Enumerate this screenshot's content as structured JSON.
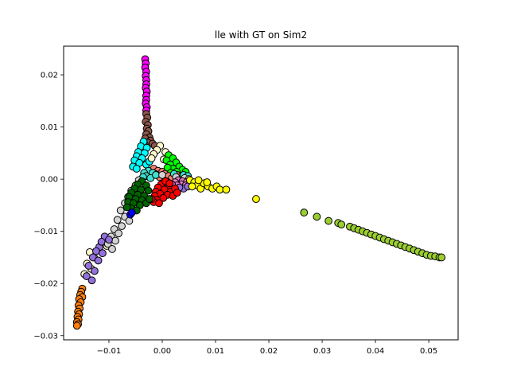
{
  "chart_data": {
    "type": "scatter",
    "title": "lle with GT on Sim2",
    "xlabel": "",
    "ylabel": "",
    "xlim": [
      -0.0185,
      0.0555
    ],
    "ylim": [
      -0.0308,
      0.0255
    ],
    "grid": false,
    "legend": "none",
    "xticks": [
      {
        "value": -0.01,
        "label": "−0.01"
      },
      {
        "value": 0.0,
        "label": "0.00"
      },
      {
        "value": 0.01,
        "label": "0.01"
      },
      {
        "value": 0.02,
        "label": "0.02"
      },
      {
        "value": 0.03,
        "label": "0.03"
      },
      {
        "value": 0.04,
        "label": "0.04"
      },
      {
        "value": 0.05,
        "label": "0.05"
      }
    ],
    "yticks": [
      {
        "value": -0.03,
        "label": "−0.03"
      },
      {
        "value": -0.02,
        "label": "−0.02"
      },
      {
        "value": -0.01,
        "label": "−0.01"
      },
      {
        "value": 0.0,
        "label": "0.00"
      },
      {
        "value": 0.01,
        "label": "0.01"
      },
      {
        "value": 0.02,
        "label": "0.02"
      }
    ],
    "marker_edge_color": "#000000",
    "series": [
      {
        "color": "#ff00ff",
        "points": [
          [
            -0.0032,
            0.023
          ],
          [
            -0.0031,
            0.0222
          ],
          [
            -0.0032,
            0.0214
          ],
          [
            -0.003,
            0.0206
          ],
          [
            -0.0031,
            0.0198
          ],
          [
            -0.003,
            0.019
          ],
          [
            -0.003,
            0.0182
          ],
          [
            -0.0031,
            0.0175
          ],
          [
            -0.0029,
            0.0168
          ],
          [
            -0.003,
            0.016
          ],
          [
            -0.003,
            0.0152
          ],
          [
            -0.0031,
            0.0145
          ],
          [
            -0.0029,
            0.0138
          ],
          [
            -0.003,
            0.0132
          ]
        ]
      },
      {
        "color": "#8c564b",
        "points": [
          [
            -0.003,
            0.0125
          ],
          [
            -0.0028,
            0.0118
          ],
          [
            -0.0031,
            0.011
          ],
          [
            -0.0027,
            0.0104
          ],
          [
            -0.0029,
            0.0097
          ],
          [
            -0.0026,
            0.0092
          ],
          [
            -0.003,
            0.0086
          ],
          [
            -0.0024,
            0.008
          ],
          [
            -0.0032,
            0.0078
          ],
          [
            -0.0022,
            0.0074
          ],
          [
            -0.0027,
            0.007
          ],
          [
            -0.0018,
            0.0068
          ],
          [
            -0.0033,
            0.0066
          ],
          [
            -0.0014,
            0.0064
          ]
        ]
      },
      {
        "color": "#00ffff",
        "points": [
          [
            -0.0035,
            0.0072
          ],
          [
            -0.004,
            0.0063
          ],
          [
            -0.0029,
            0.006
          ],
          [
            -0.0045,
            0.0052
          ],
          [
            -0.0033,
            0.005
          ],
          [
            -0.0048,
            0.0044
          ],
          [
            -0.0038,
            0.004
          ],
          [
            -0.0052,
            0.0036
          ],
          [
            -0.0043,
            0.0031
          ],
          [
            -0.0055,
            0.0024
          ],
          [
            -0.003,
            0.0028
          ],
          [
            -0.0048,
            0.002
          ],
          [
            -0.0024,
            0.0034
          ]
        ]
      },
      {
        "color": "#fffacd",
        "points": [
          [
            -0.0004,
            0.0064
          ],
          [
            -0.001,
            0.0056
          ],
          [
            0.0006,
            0.0052
          ],
          [
            -0.0016,
            0.0048
          ],
          [
            0.0012,
            0.0044
          ],
          [
            -0.002,
            0.004
          ],
          [
            0.0003,
            0.0038
          ],
          [
            -0.0136,
            -0.014
          ],
          [
            -0.0128,
            -0.015
          ],
          [
            -0.0141,
            -0.0162
          ],
          [
            -0.0133,
            -0.0172
          ],
          [
            -0.0146,
            -0.0182
          ],
          [
            -0.011,
            -0.012
          ],
          [
            -0.0104,
            -0.0128
          ]
        ]
      },
      {
        "color": "#00ff00",
        "points": [
          [
            0.0012,
            0.0046
          ],
          [
            0.002,
            0.004
          ],
          [
            0.0008,
            0.0036
          ],
          [
            0.0026,
            0.0032
          ],
          [
            0.0015,
            0.0028
          ],
          [
            0.0032,
            0.0024
          ],
          [
            0.002,
            0.002
          ],
          [
            0.0038,
            0.0018
          ],
          [
            0.001,
            0.0022
          ],
          [
            0.0027,
            0.0014
          ],
          [
            0.0044,
            0.0014
          ],
          [
            0.0016,
            0.0012
          ]
        ]
      },
      {
        "color": "#fa8072",
        "points": [
          [
            -0.0016,
            0.002
          ],
          [
            -0.0008,
            0.0016
          ],
          [
            0.0,
            0.0014
          ],
          [
            -0.0013,
            0.001
          ],
          [
            0.0005,
            0.001
          ],
          [
            -0.0021,
            0.0006
          ],
          [
            0.0012,
            0.0006
          ],
          [
            -0.0005,
            0.0004
          ],
          [
            0.0018,
            0.0002
          ],
          [
            0.0028,
            0.0008
          ],
          [
            0.0034,
            0.0004
          ]
        ]
      },
      {
        "color": "#40e0d0",
        "points": [
          [
            -0.0026,
            0.0016
          ],
          [
            -0.0034,
            0.0012
          ],
          [
            -0.0018,
            0.0012
          ],
          [
            -0.003,
            0.0006
          ],
          [
            -0.0022,
            0.0002
          ],
          [
            -0.0036,
            0.0004
          ],
          [
            -0.0012,
            0.0008
          ],
          [
            0.0022,
            0.001
          ],
          [
            0.004,
            0.0008
          ],
          [
            0.0048,
            0.0006
          ]
        ]
      },
      {
        "color": "#d3d3d3",
        "points": [
          [
            0.0,
            0.0008
          ],
          [
            0.0026,
            0.0004
          ],
          [
            0.0042,
            0.0002
          ],
          [
            0.005,
            0.0
          ],
          [
            -0.0044,
            -0.0002
          ],
          [
            -0.005,
            -0.0012
          ],
          [
            -0.0058,
            -0.0022
          ],
          [
            -0.0064,
            -0.0034
          ],
          [
            -0.007,
            -0.0046
          ],
          [
            -0.006,
            -0.005
          ],
          [
            -0.0054,
            -0.006
          ],
          [
            -0.0078,
            -0.006
          ],
          [
            -0.007,
            -0.0072
          ],
          [
            -0.0062,
            -0.008
          ],
          [
            -0.0084,
            -0.0078
          ],
          [
            -0.0076,
            -0.009
          ],
          [
            -0.009,
            -0.0096
          ],
          [
            -0.0082,
            -0.0104
          ],
          [
            -0.0096,
            -0.011
          ],
          [
            -0.0088,
            -0.0118
          ],
          [
            -0.0102,
            -0.0124
          ],
          [
            -0.0094,
            -0.0134
          ]
        ]
      },
      {
        "color": "#e377c2",
        "points": [
          [
            0.003,
            -0.0002
          ],
          [
            0.0038,
            -0.0004
          ],
          [
            0.0046,
            -0.0006
          ],
          [
            0.0024,
            -0.0006
          ],
          [
            0.0036,
            -0.001
          ],
          [
            0.0044,
            -0.0012
          ],
          [
            0.0028,
            -0.0012
          ],
          [
            0.0018,
            -0.001
          ]
        ]
      },
      {
        "color": "#9370db",
        "points": [
          [
            0.004,
            -0.0018
          ],
          [
            0.0048,
            -0.0014
          ],
          [
            0.0032,
            -0.0016
          ],
          [
            -0.0118,
            -0.013
          ],
          [
            -0.0124,
            -0.0138
          ],
          [
            -0.0112,
            -0.0142
          ],
          [
            -0.013,
            -0.015
          ],
          [
            -0.012,
            -0.0156
          ],
          [
            -0.0138,
            -0.0166
          ],
          [
            -0.0127,
            -0.0176
          ],
          [
            -0.0142,
            -0.0186
          ],
          [
            -0.0132,
            -0.0194
          ],
          [
            -0.0108,
            -0.011
          ],
          [
            -0.01,
            -0.0116
          ],
          [
            -0.0114,
            -0.012
          ]
        ]
      },
      {
        "color": "#ffff00",
        "points": [
          [
            0.0052,
            -0.0002
          ],
          [
            0.006,
            -0.0006
          ],
          [
            0.0066,
            -0.0012
          ],
          [
            0.0072,
            -0.0018
          ],
          [
            0.0078,
            -0.0008
          ],
          [
            0.0086,
            -0.0014
          ],
          [
            0.0094,
            -0.0018
          ],
          [
            0.0102,
            -0.0014
          ],
          [
            0.0108,
            -0.002
          ],
          [
            0.012,
            -0.002
          ],
          [
            0.0068,
            -0.0002
          ],
          [
            0.0084,
            -0.0006
          ],
          [
            0.0056,
            -0.0014
          ],
          [
            0.0176,
            -0.0038
          ]
        ]
      },
      {
        "color": "#ff0000",
        "points": [
          [
            0.0008,
            -0.0004
          ],
          [
            -0.0002,
            -0.001
          ],
          [
            0.0012,
            -0.0014
          ],
          [
            -0.0008,
            -0.0016
          ],
          [
            0.0004,
            -0.002
          ],
          [
            -0.0012,
            -0.0024
          ],
          [
            0.0016,
            -0.0024
          ],
          [
            -0.0004,
            -0.0028
          ],
          [
            0.001,
            -0.003
          ],
          [
            -0.0014,
            -0.0032
          ],
          [
            0.002,
            -0.0032
          ],
          [
            0.0002,
            -0.0036
          ],
          [
            -0.001,
            -0.004
          ],
          [
            0.0024,
            -0.0018
          ],
          [
            -0.0016,
            -0.0044
          ],
          [
            0.0006,
            -0.0004
          ],
          [
            0.0014,
            -0.0008
          ],
          [
            -0.002,
            -0.0038
          ],
          [
            -0.0006,
            -0.0046
          ],
          [
            0.0028,
            -0.0026
          ]
        ]
      },
      {
        "color": "#006400",
        "points": [
          [
            -0.0038,
            -0.0004
          ],
          [
            -0.0046,
            -0.001
          ],
          [
            -0.003,
            -0.0012
          ],
          [
            -0.0052,
            -0.0018
          ],
          [
            -0.004,
            -0.002
          ],
          [
            -0.0026,
            -0.0022
          ],
          [
            -0.0058,
            -0.0026
          ],
          [
            -0.0046,
            -0.003
          ],
          [
            -0.0034,
            -0.0032
          ],
          [
            -0.0062,
            -0.0034
          ],
          [
            -0.005,
            -0.0038
          ],
          [
            -0.0038,
            -0.004
          ],
          [
            -0.0064,
            -0.0044
          ],
          [
            -0.0054,
            -0.0046
          ],
          [
            -0.0042,
            -0.005
          ],
          [
            -0.0058,
            -0.0056
          ],
          [
            -0.0048,
            -0.006
          ],
          [
            -0.003,
            -0.0046
          ],
          [
            -0.0024,
            -0.0038
          ],
          [
            -0.0066,
            -0.0054
          ]
        ]
      },
      {
        "color": "#0000ff",
        "points": [
          [
            -0.006,
            -0.0068
          ],
          [
            -0.0057,
            -0.0064
          ]
        ]
      },
      {
        "color": "#ff7f0e",
        "points": [
          [
            -0.015,
            -0.021
          ],
          [
            -0.0152,
            -0.0216
          ],
          [
            -0.0154,
            -0.0222
          ],
          [
            -0.015,
            -0.0226
          ],
          [
            -0.0156,
            -0.023
          ],
          [
            -0.0153,
            -0.0236
          ],
          [
            -0.0157,
            -0.0242
          ],
          [
            -0.0155,
            -0.0248
          ],
          [
            -0.0158,
            -0.0254
          ],
          [
            -0.0156,
            -0.0259
          ],
          [
            -0.0159,
            -0.0264
          ],
          [
            -0.0157,
            -0.0269
          ],
          [
            -0.016,
            -0.0274
          ],
          [
            -0.0158,
            -0.0278
          ],
          [
            -0.016,
            -0.0281
          ]
        ]
      },
      {
        "color": "#9acd32",
        "points": [
          [
            0.0266,
            -0.0064
          ],
          [
            0.029,
            -0.0072
          ],
          [
            0.0312,
            -0.008
          ],
          [
            0.033,
            -0.0084
          ],
          [
            0.0336,
            -0.0087
          ],
          [
            0.0352,
            -0.0091
          ],
          [
            0.036,
            -0.0094
          ],
          [
            0.0368,
            -0.0097
          ],
          [
            0.0376,
            -0.01
          ],
          [
            0.0384,
            -0.0103
          ],
          [
            0.0392,
            -0.0106
          ],
          [
            0.04,
            -0.0109
          ],
          [
            0.0408,
            -0.0112
          ],
          [
            0.0416,
            -0.0115
          ],
          [
            0.0424,
            -0.0118
          ],
          [
            0.0432,
            -0.0121
          ],
          [
            0.044,
            -0.0124
          ],
          [
            0.0448,
            -0.0127
          ],
          [
            0.0456,
            -0.013
          ],
          [
            0.0464,
            -0.0133
          ],
          [
            0.0472,
            -0.0136
          ],
          [
            0.048,
            -0.0139
          ],
          [
            0.0488,
            -0.0142
          ],
          [
            0.0496,
            -0.0145
          ],
          [
            0.0504,
            -0.0147
          ],
          [
            0.0512,
            -0.0148
          ],
          [
            0.052,
            -0.015
          ],
          [
            0.0524,
            -0.015
          ]
        ]
      }
    ]
  }
}
